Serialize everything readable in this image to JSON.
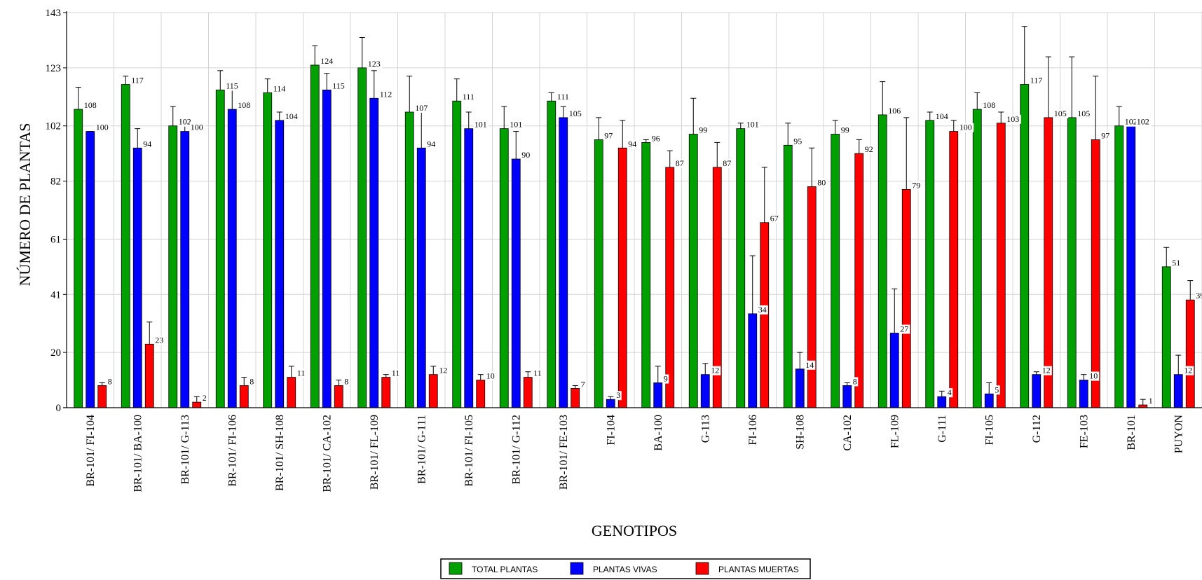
{
  "chart_data": {
    "type": "bar",
    "xlabel": "GENOTIPOS",
    "ylabel": "NÚMERO DE PLANTAS",
    "ylim": [
      0,
      143
    ],
    "yticks": [
      "0",
      "20",
      "41",
      "61",
      "82",
      "102",
      "123",
      "143"
    ],
    "grid": true,
    "legend_position": "bottom",
    "categories": [
      "BR-101/ FI-104",
      "BR-101/ BA-100",
      "BR-101/ G-113",
      "BR-101/ FI-106",
      "BR-101/ SH-108",
      "BR-101/ CA-102",
      "BR-101/ FL-109",
      "BR-101/ G-111",
      "BR-101/ FI-105",
      "BR-101/ G-112",
      "BR-101/ FE-103",
      "FI-104",
      "BA-100",
      "G-113",
      "FI-106",
      "SH-108",
      "CA-102",
      "FL-109",
      "G-111",
      "FI-105",
      "G-112",
      "FE-103",
      "BR-101",
      "PUYON"
    ],
    "series": [
      {
        "name": "TOTAL PLANTAS",
        "color": "#00a000",
        "values": [
          108,
          117,
          102,
          115,
          114,
          124,
          123,
          107,
          111,
          101,
          111,
          97,
          96,
          99,
          101,
          95,
          99,
          106,
          104,
          108,
          117,
          105,
          102,
          51
        ],
        "labels": [
          "108",
          "117",
          "102",
          "115",
          "114",
          "124",
          "123",
          "107",
          "111",
          "101",
          "111",
          "97",
          "96",
          "99",
          "101",
          "95",
          "99",
          "106",
          "104",
          "108",
          "117",
          "105",
          "102",
          "51"
        ],
        "error_upper": [
          116,
          120,
          109,
          122,
          119,
          131,
          134,
          120,
          119,
          109,
          114,
          105,
          97,
          112,
          103,
          103,
          104,
          118,
          107,
          114,
          138,
          127,
          109,
          58
        ]
      },
      {
        "name": "PLANTAS VIVAS",
        "color": "#0000ff",
        "values": [
          100,
          94,
          100,
          108,
          104,
          115,
          112,
          94,
          101,
          90,
          105,
          3,
          9,
          12,
          34,
          14,
          8,
          27,
          4,
          5,
          12,
          10,
          102,
          12
        ],
        "labels": [
          "100",
          "94",
          "100",
          "108",
          "104",
          "115",
          "112",
          "94",
          "101",
          "90",
          "105",
          "3",
          "9",
          "12",
          "34",
          "14",
          "8",
          "27",
          "4",
          "5",
          "12",
          "10",
          "102",
          "12"
        ],
        "error_upper": [
          100,
          101,
          102,
          115,
          107,
          121,
          122,
          107,
          107,
          100,
          109,
          4,
          15,
          16,
          55,
          20,
          9,
          43,
          6,
          9,
          13,
          12,
          103,
          19
        ]
      },
      {
        "name": "PLANTAS MUERTAS",
        "color": "#ff0000",
        "values": [
          8,
          23,
          2,
          8,
          11,
          8,
          11,
          12,
          10,
          11,
          7,
          94,
          87,
          87,
          67,
          80,
          92,
          79,
          100,
          103,
          105,
          97,
          1,
          39
        ],
        "labels": [
          "8",
          "23",
          "2",
          "8",
          "11",
          "8",
          "11",
          "12",
          "10",
          "11",
          "7",
          "94",
          "87",
          "87",
          "67",
          "80",
          "92",
          "79",
          "100",
          "103",
          "105",
          "97",
          "1",
          "39"
        ],
        "error_upper": [
          9,
          31,
          4,
          11,
          15,
          10,
          12,
          15,
          12,
          13,
          8,
          104,
          93,
          96,
          87,
          94,
          97,
          105,
          104,
          107,
          127,
          120,
          3,
          46
        ]
      }
    ]
  }
}
